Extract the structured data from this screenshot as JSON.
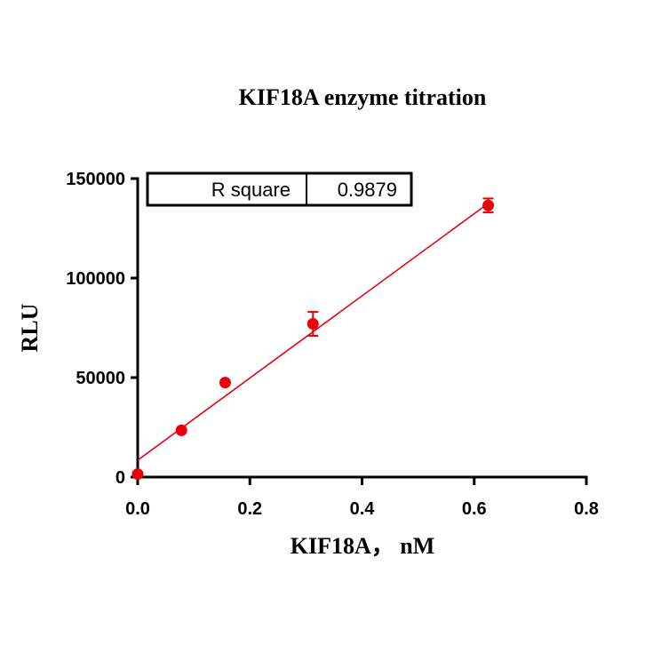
{
  "chart_data": {
    "type": "scatter",
    "title": "KIF18A  enzyme titration",
    "xlabel": "KIF18A，  nM",
    "ylabel": "RLU",
    "xlim": [
      0,
      0.8
    ],
    "ylim": [
      0,
      150000
    ],
    "x_ticks": [
      0.0,
      0.2,
      0.4,
      0.6,
      0.8
    ],
    "x_tick_labels": [
      "0.0",
      "0.2",
      "0.4",
      "0.6",
      "0.8"
    ],
    "y_ticks": [
      0,
      50000,
      100000,
      150000
    ],
    "y_tick_labels": [
      "0",
      "50000",
      "100000",
      "150000"
    ],
    "series": [
      {
        "color": "#e8000b",
        "points": [
          {
            "x": 0.0,
            "y": 1500,
            "err": 0
          },
          {
            "x": 0.078,
            "y": 23500,
            "err": 0
          },
          {
            "x": 0.156,
            "y": 47500,
            "err": 0
          },
          {
            "x": 0.3125,
            "y": 77000,
            "err": 6000
          },
          {
            "x": 0.625,
            "y": 136500,
            "err": 3500
          }
        ]
      }
    ],
    "fit_line": {
      "color": "#e8000b",
      "x": [
        0.0,
        0.625
      ],
      "y": [
        8500,
        137500
      ]
    },
    "stats_box": {
      "label": "R square",
      "value": "0.9879"
    },
    "grid": false
  }
}
